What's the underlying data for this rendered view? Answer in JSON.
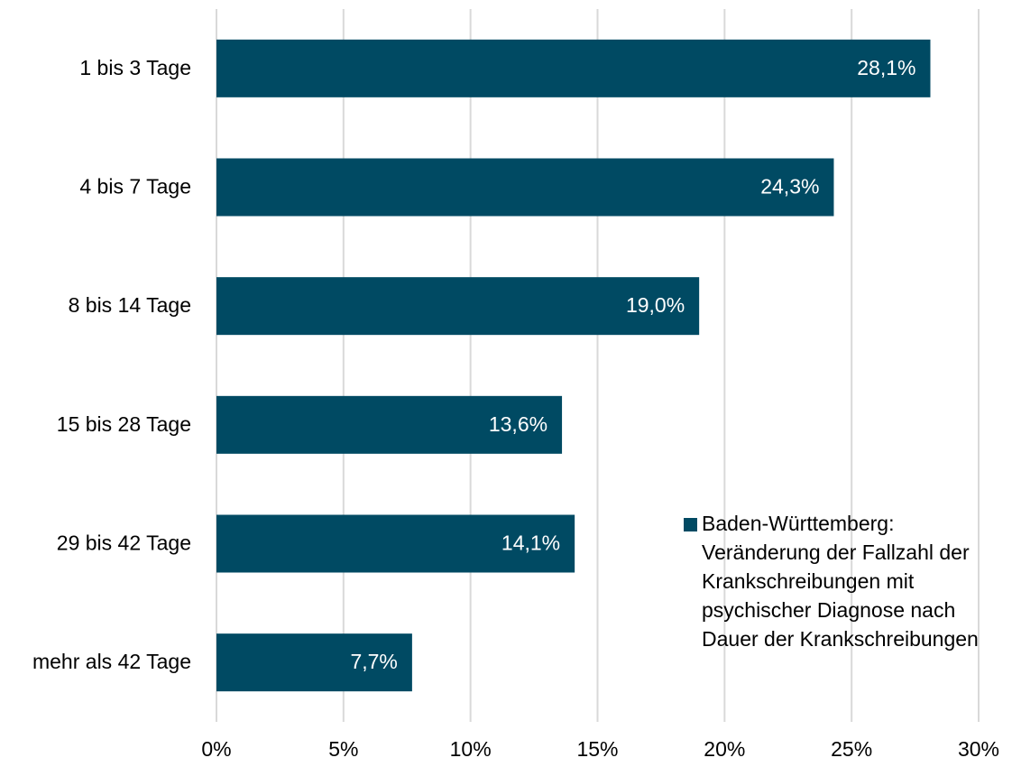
{
  "chart_data": {
    "type": "barh",
    "categories": [
      "1 bis 3 Tage",
      "4 bis 7 Tage",
      "8 bis 14 Tage",
      "15 bis 28 Tage",
      "29 bis 42 Tage",
      "mehr als 42 Tage"
    ],
    "series": [
      {
        "name": "Baden-Württemberg: Veränderung der Fallzahl der Krankschreibungen mit psychischer Diagnose nach Dauer der Krankschreibungen",
        "color": "#004a63",
        "values": [
          28.1,
          24.3,
          19.0,
          13.6,
          14.1,
          7.7
        ],
        "value_labels": [
          "28,1%",
          "24,3%",
          "19,0%",
          "13,6%",
          "14,1%",
          "7,7%"
        ]
      }
    ],
    "xlim": [
      0,
      30
    ],
    "xticks": [
      {
        "value": 0,
        "label": "0%"
      },
      {
        "value": 5,
        "label": "5%"
      },
      {
        "value": 10,
        "label": "10%"
      },
      {
        "value": 15,
        "label": "15%"
      },
      {
        "value": 20,
        "label": "20%"
      },
      {
        "value": 25,
        "label": "25%"
      },
      {
        "value": 30,
        "label": "30%"
      }
    ],
    "grid": true,
    "legend": "right"
  }
}
